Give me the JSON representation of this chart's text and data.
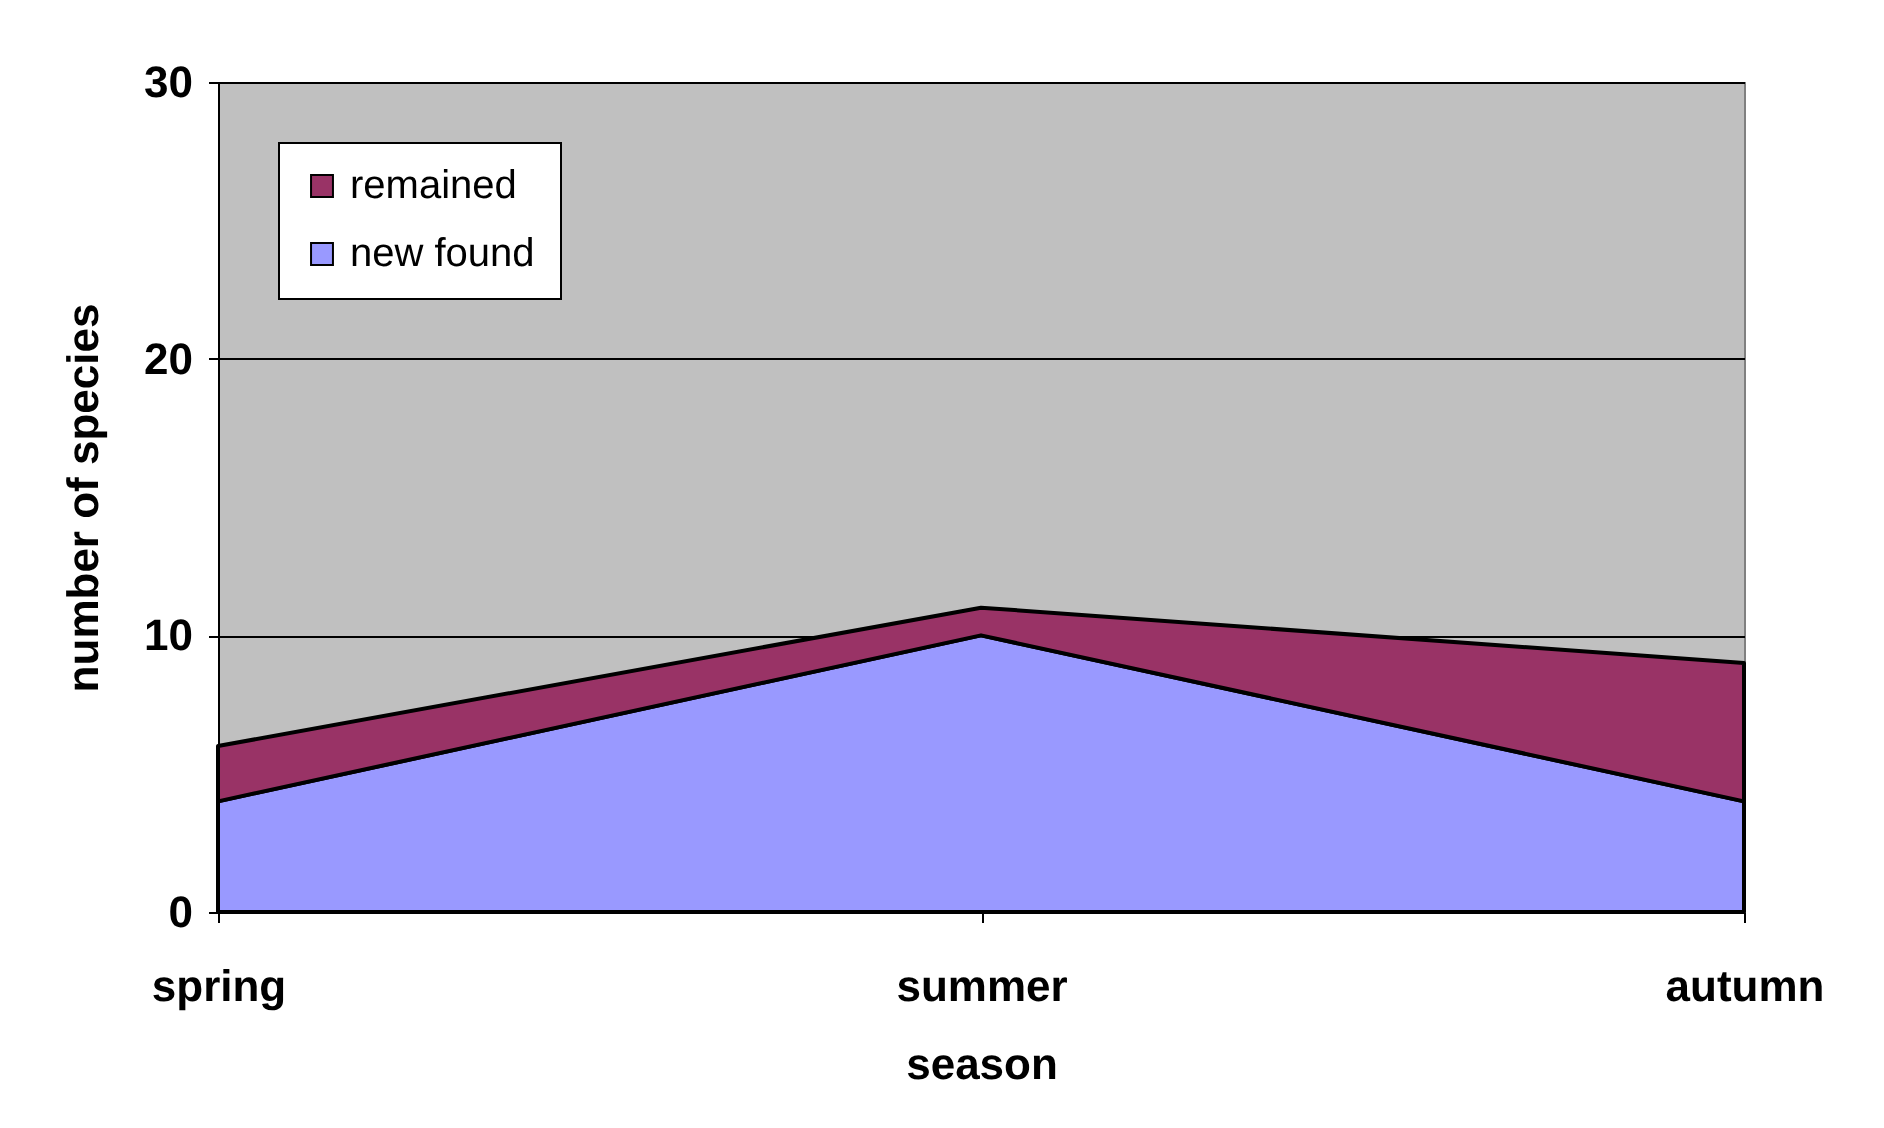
{
  "chart_data": {
    "type": "area",
    "xlabel": "season",
    "ylabel": "number of species",
    "categories": [
      "spring",
      "summer",
      "autumn"
    ],
    "series": [
      {
        "name": "new found",
        "color": "#9999ff",
        "values": [
          4,
          10,
          4
        ]
      },
      {
        "name": "remained",
        "color": "#993366",
        "values": [
          2,
          1,
          5
        ]
      }
    ],
    "stacked": true,
    "ylim": [
      0,
      30
    ],
    "yticks": [
      0,
      10,
      20,
      30
    ],
    "grid": "y",
    "legend": "top left"
  }
}
